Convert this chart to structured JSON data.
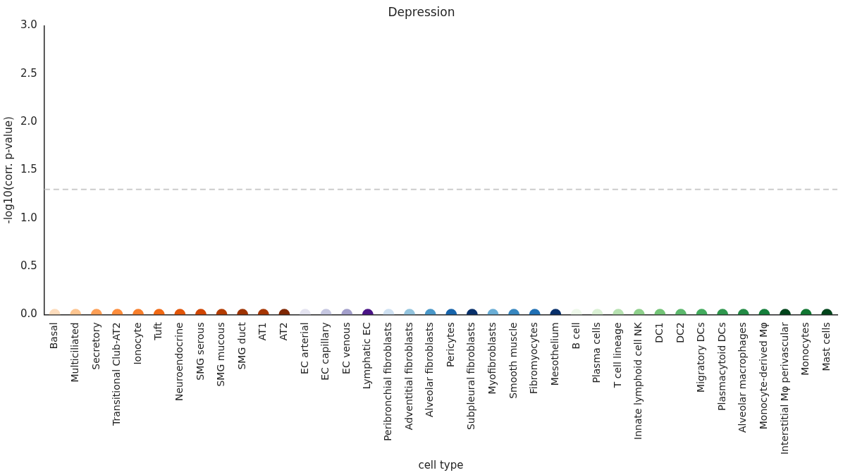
{
  "chart_data": {
    "type": "scatter",
    "title": "Depression",
    "xlabel": "cell type",
    "ylabel": "-log10(corr. p-value)",
    "categories": [
      "Basal",
      "Multiciliated",
      "Secretory",
      "Transitional Club-AT2",
      "Ionocyte",
      "Tuft",
      "Neuroendocrine",
      "SMG serous",
      "SMG mucous",
      "SMG duct",
      "AT1",
      "AT2",
      "EC arterial",
      "EC capillary",
      "EC venous",
      "Lymphatic EC",
      "Peribronchial fibroblasts",
      "Adventitial fibroblasts",
      "Alveolar fibroblasts",
      "Pericytes",
      "Subpleural fibroblasts",
      "Myofibroblasts",
      "Smooth muscle",
      "Fibromyocytes",
      "Mesothelium",
      "B cell",
      "Plasma cells",
      "T cell lineage",
      "Innate lymphoid cell NK",
      "DC1",
      "DC2",
      "Migratory DCs",
      "Plasmacytoid DCs",
      "Alveolar macrophages",
      "Monocyte-derived Mφ",
      "Interstitial Mφ perivascular",
      "Monocytes",
      "Mast cells"
    ],
    "values": [
      0,
      0,
      0,
      0,
      0,
      0,
      0,
      0,
      0,
      0,
      0,
      0,
      0,
      0,
      0,
      0,
      0,
      0,
      0,
      0,
      0,
      0,
      0,
      0,
      0,
      0,
      0,
      0,
      0,
      0,
      0,
      0,
      0,
      0,
      0,
      0,
      0,
      0
    ],
    "colors": [
      "#fddcbc",
      "#fdc590",
      "#fd9f56",
      "#fd8d3c",
      "#f87f2c",
      "#f16913",
      "#e25508",
      "#d04501",
      "#b33c02",
      "#9e3303",
      "#a63603",
      "#7f2704",
      "#e4e3f0",
      "#c6c7e1",
      "#a39fcb",
      "#4a1486",
      "#cfe1f2",
      "#93c4de",
      "#4a98c9",
      "#1764ab",
      "#08306b",
      "#6aaed6",
      "#3787c0",
      "#2070b4",
      "#08306b",
      "#eef8ea",
      "#dbf1d5",
      "#b7e2b1",
      "#8ed08b",
      "#73c476",
      "#5cb86c",
      "#42ab5d",
      "#2f974e",
      "#238b45",
      "#157f3b",
      "#00441b",
      "#117632",
      "#00441b"
    ],
    "ylim": [
      0,
      3
    ],
    "yticks": [
      {
        "value": 0,
        "label": "0.0"
      },
      {
        "value": 0.5,
        "label": "0.5"
      },
      {
        "value": 1,
        "label": "1.0"
      },
      {
        "value": 1.5,
        "label": "1.5"
      },
      {
        "value": 2,
        "label": "2.0"
      },
      {
        "value": 2.5,
        "label": "2.5"
      },
      {
        "value": 3,
        "label": "3.0"
      }
    ],
    "ref_lines": [
      {
        "axis": "y",
        "value": 1.3,
        "color": "#cccccc",
        "line_style": "dashed"
      }
    ],
    "grid": false,
    "legend": false,
    "marker": "circle"
  }
}
